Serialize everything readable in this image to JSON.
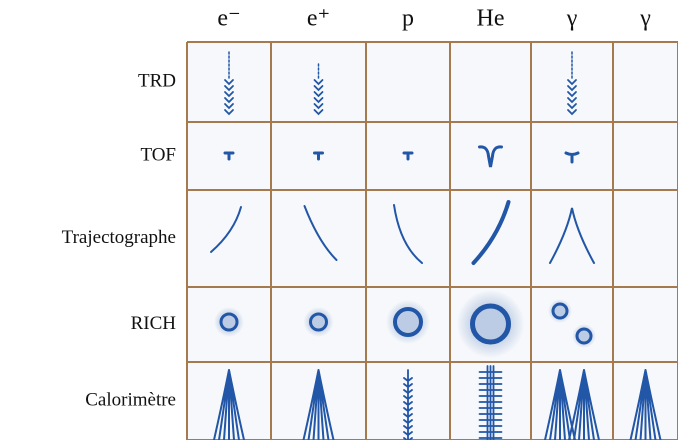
{
  "columns": [
    "e⁻",
    "e⁺",
    "p",
    "He",
    "γ",
    "γ"
  ],
  "rows": [
    "TRD",
    "TOF",
    "Trajectographe",
    "RICH",
    "Calorimètre"
  ]
}
